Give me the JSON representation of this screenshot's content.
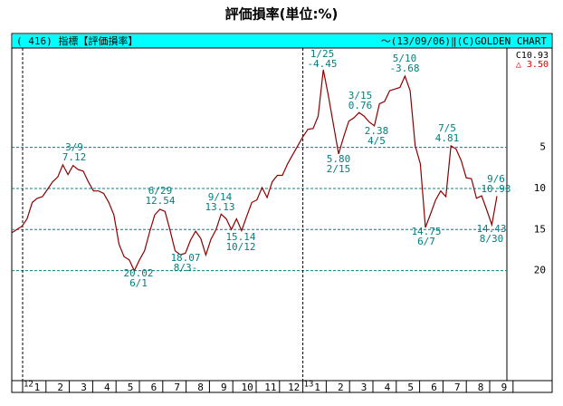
{
  "title": "評価損率(単位:%)",
  "header_left": "( 416) 指標【評価損率】",
  "header_right": "～(13/09/06)‖(C)GOLDEN CHART",
  "last_value": "C10.93",
  "change": "△ 3.50",
  "chart_data": {
    "type": "line",
    "inverted": true,
    "grid": true,
    "color": "#8b0000",
    "ylim": [
      -7.1,
      33.4
    ],
    "yticks": [
      5,
      10,
      15,
      20
    ],
    "years": [
      "12",
      "13"
    ],
    "months": [
      "1",
      "2",
      "3",
      "4",
      "5",
      "6",
      "7",
      "8",
      "9",
      "10",
      "11",
      "12",
      "1",
      "2",
      "3",
      "4",
      "5",
      "6",
      "7",
      "8",
      "9"
    ],
    "values": [
      15.4,
      15,
      14.6,
      13.7,
      11.7,
      11.2,
      11,
      10.1,
      9.2,
      8.6,
      7.12,
      8.3,
      7.2,
      7.7,
      7.9,
      9.2,
      10.3,
      10.3,
      10.6,
      11.7,
      13.2,
      16.8,
      18.3,
      18.7,
      20.02,
      18.7,
      17.6,
      15.3,
      13.2,
      12.54,
      12.8,
      15.1,
      17.6,
      18.07,
      17.9,
      16.3,
      15.2,
      16.1,
      18.1,
      16.2,
      15,
      13.13,
      13.7,
      15,
      13.7,
      15.14,
      13.4,
      11.7,
      11.4,
      9.9,
      11.1,
      9.2,
      8.4,
      8.4,
      7,
      5.9,
      4.8,
      3.7,
      2.8,
      2.7,
      1.2,
      -4.45,
      -1.3,
      2.3,
      5.8,
      3.7,
      1.8,
      1.4,
      0.76,
      1.2,
      1.9,
      2.38,
      -0.3,
      -0.6,
      -1.9,
      -2.1,
      -2.3,
      -3.68,
      -1.9,
      4.8,
      7,
      14.75,
      13.1,
      11.4,
      10.3,
      11,
      4.81,
      5.2,
      6.6,
      8.7,
      8.8,
      11.2,
      10.9,
      12.6,
      14.43,
      10.93
    ],
    "annotations": [
      [
        "3/9",
        "7.12"
      ],
      [
        "6/29",
        "12.54"
      ],
      [
        "20.02",
        "6/1"
      ],
      [
        "18.07",
        "8/3-"
      ],
      [
        "9/14",
        "13.13"
      ],
      [
        "15.14",
        "10/12"
      ],
      [
        "1/25",
        "-4.45"
      ],
      [
        "5.80",
        "2/15"
      ],
      [
        "3/15",
        "0.76"
      ],
      [
        "2.38",
        "4/5"
      ],
      [
        "5/10",
        "-3.68"
      ],
      [
        "14.75",
        "6/7"
      ],
      [
        "7/5",
        "4.81"
      ],
      [
        "9/6",
        "10.93"
      ],
      [
        "14.43",
        "8/30"
      ]
    ]
  }
}
